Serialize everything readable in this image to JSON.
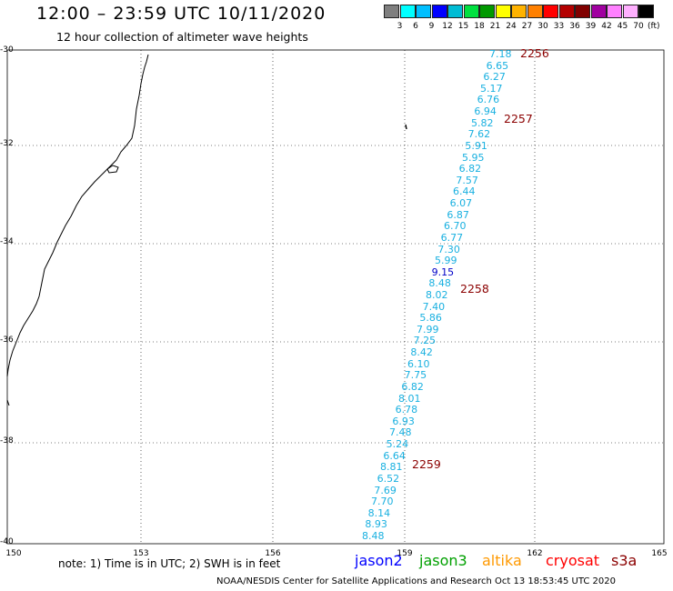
{
  "title": "12:00 – 23:59 UTC 10/11/2020",
  "subtitle": "12 hour collection of altimeter wave heights",
  "colorbar": {
    "colors": [
      "#7f7f7f",
      "#00ffff",
      "#00bfff",
      "#0000ff",
      "#00bcd4",
      "#00e040",
      "#009900",
      "#ffff00",
      "#ffb300",
      "#ff8000",
      "#ff0000",
      "#b40000",
      "#800000",
      "#a000a0",
      "#ff80ff",
      "#ffb0ff",
      "#000000"
    ],
    "labels": [
      "3",
      "6",
      "9",
      "12",
      "15",
      "18",
      "21",
      "24",
      "27",
      "30",
      "33",
      "36",
      "39",
      "42",
      "45",
      "70"
    ],
    "unit": "(ft)"
  },
  "axes": {
    "lat_labels": [
      "-30",
      "-32",
      "-34",
      "-36",
      "-38",
      "-40"
    ],
    "lon_labels": [
      "150",
      "153",
      "156",
      "159",
      "162",
      "165"
    ]
  },
  "track_values": [
    "7.18",
    "6.65",
    "6.27",
    "5.17",
    "6.76",
    "6.94",
    "5.82",
    "7.62",
    "5.91",
    "5.95",
    "6.82",
    "7.57",
    "6.44",
    "6.07",
    "6.87",
    "6.70",
    "6.77",
    "7.30",
    "5.99",
    "9.15",
    "8.48",
    "8.02",
    "7.40",
    "5.86",
    "7.99",
    "7.25",
    "8.42",
    "6.10",
    "7.75",
    "6.82",
    "8.01",
    "6.78",
    "6.93",
    "7.48",
    "5.24",
    "6.64",
    "8.81",
    "6.52",
    "7.69",
    "7.70",
    "8.14",
    "8.93",
    "8.48"
  ],
  "time_labels": [
    "2256",
    "2257",
    "2258",
    "2259"
  ],
  "note": "note: 1) Time is in UTC; 2) SWH is in feet",
  "legend": [
    {
      "name": "jason2",
      "color": "#0000ff"
    },
    {
      "name": "jason3",
      "color": "#00a000"
    },
    {
      "name": "altika",
      "color": "#ff9900"
    },
    {
      "name": "cryosat",
      "color": "#ff0000"
    },
    {
      "name": "s3a",
      "color": "#8b0000"
    }
  ],
  "footer": "NOAA/NESDIS Center for Satellite Applications and Research   Oct 13 18:53:45 UTC 2020"
}
